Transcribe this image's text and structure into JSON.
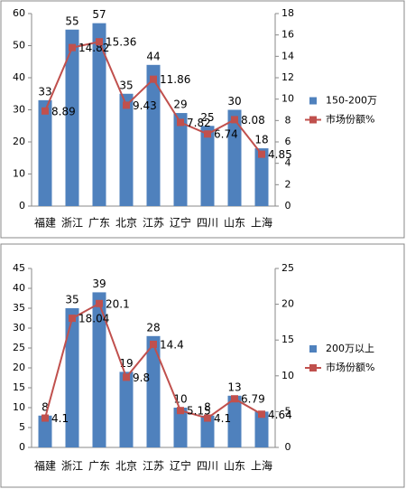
{
  "chart_data": [
    {
      "type": "combo",
      "categories": [
        "福建",
        "浙江",
        "广东",
        "北京",
        "江苏",
        "辽宁",
        "四川",
        "山东",
        "上海"
      ],
      "series": [
        {
          "name": "150-200万",
          "type": "bar",
          "color": "#4f81bd",
          "values": [
            33,
            55,
            57,
            35,
            44,
            29,
            25,
            30,
            18
          ]
        },
        {
          "name": "市场份额%",
          "type": "line",
          "axis": "y2",
          "color": "#c0504d",
          "values": [
            8.89,
            14.82,
            15.36,
            9.43,
            11.86,
            7.82,
            6.74,
            8.08,
            4.85
          ]
        }
      ],
      "ylim": [
        0,
        60
      ],
      "yticks": [
        0,
        10,
        20,
        30,
        40,
        50,
        60
      ],
      "y2lim": [
        0,
        18
      ],
      "y2ticks": [
        0,
        2,
        4,
        6,
        8,
        10,
        12,
        14,
        16,
        18
      ],
      "grid": false,
      "legend": "right"
    },
    {
      "type": "combo",
      "categories": [
        "福建",
        "浙江",
        "广东",
        "北京",
        "江苏",
        "辽宁",
        "四川",
        "山东",
        "上海"
      ],
      "series": [
        {
          "name": "200万以上",
          "type": "bar",
          "color": "#4f81bd",
          "values": [
            8,
            35,
            39,
            19,
            28,
            10,
            8,
            13,
            9
          ],
          "value_labels": [
            "8",
            "35",
            "39",
            "19",
            "28",
            "10",
            "8",
            "13",
            null
          ]
        },
        {
          "name": "市场份额%",
          "type": "line",
          "axis": "y2",
          "color": "#c0504d",
          "values": [
            4.1,
            18.04,
            20.1,
            9.8,
            14.4,
            5.15,
            4.1,
            6.79,
            4.64
          ]
        }
      ],
      "ylim": [
        0,
        45
      ],
      "yticks": [
        0,
        5,
        10,
        15,
        20,
        25,
        30,
        35,
        40,
        45
      ],
      "y2lim": [
        0,
        25
      ],
      "y2ticks": [
        0,
        5,
        10,
        15,
        20,
        25
      ],
      "grid": false,
      "legend": "right"
    }
  ]
}
